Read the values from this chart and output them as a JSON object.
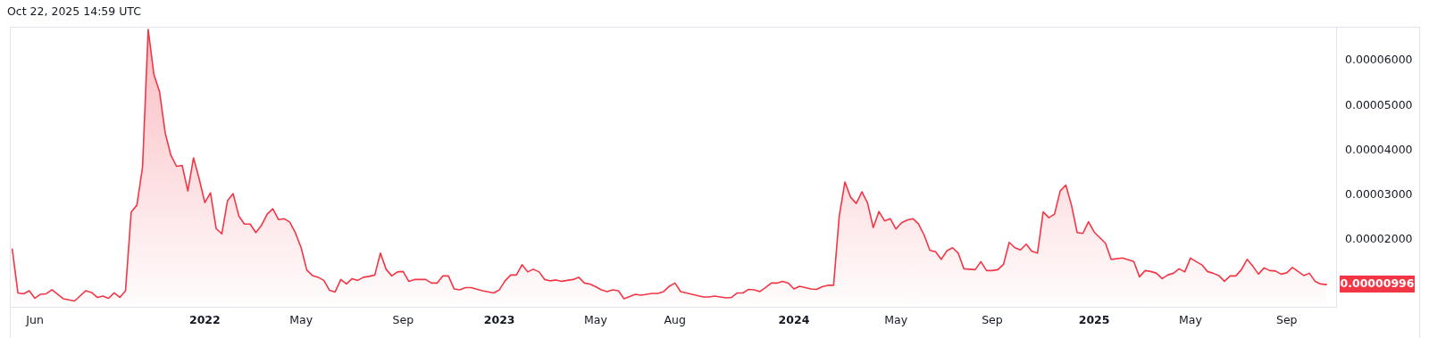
{
  "chart_data": {
    "type": "area",
    "annotations": [
      "Oct 22, 2025 14:59 UTC",
      "0.00000996"
    ],
    "xlim": [
      "2021-05-07",
      "2025-11-01"
    ],
    "xticks": [
      {
        "value": "2021-06-07",
        "label": "Jun"
      },
      {
        "value": "2022-01-03",
        "label": "2022"
      },
      {
        "value": "2022-05-02",
        "label": "May"
      },
      {
        "value": "2022-09-05",
        "label": "Sep"
      },
      {
        "value": "2023-01-02",
        "label": "2023"
      },
      {
        "value": "2023-05-01",
        "label": "May"
      },
      {
        "value": "2023-08-07",
        "label": "Aug"
      },
      {
        "value": "2024-01-01",
        "label": "2024"
      },
      {
        "value": "2024-05-06",
        "label": "May"
      },
      {
        "value": "2024-09-02",
        "label": "Sep"
      },
      {
        "value": "2025-01-06",
        "label": "2025"
      },
      {
        "value": "2025-05-05",
        "label": "May"
      },
      {
        "value": "2025-09-01",
        "label": "Sep"
      }
    ],
    "ylim": [
      5e-06,
      6.76e-05
    ],
    "yticks": [
      {
        "value": 2e-05,
        "label": "0.00002000"
      },
      {
        "value": 3e-05,
        "label": "0.00003000"
      },
      {
        "value": 4e-05,
        "label": "0.00004000"
      },
      {
        "value": 5e-05,
        "label": "0.00005000"
      },
      {
        "value": 6e-05,
        "label": "0.00006000"
      }
    ],
    "series": [
      {
        "color": "#f23645",
        "x": [
          "2021-05-10",
          "2021-05-17",
          "2021-05-24",
          "2021-05-31",
          "2021-06-07",
          "2021-06-14",
          "2021-06-21",
          "2021-06-28",
          "2021-07-12",
          "2021-07-26",
          "2021-08-09",
          "2021-08-16",
          "2021-08-23",
          "2021-08-30",
          "2021-09-06",
          "2021-09-13",
          "2021-09-20",
          "2021-09-27",
          "2021-10-04",
          "2021-10-11",
          "2021-10-18",
          "2021-10-25",
          "2021-11-01",
          "2021-11-08",
          "2021-11-15",
          "2021-11-22",
          "2021-11-29",
          "2021-12-06",
          "2021-12-13",
          "2021-12-20",
          "2021-12-27",
          "2022-01-03",
          "2022-01-10",
          "2022-01-17",
          "2022-01-24",
          "2022-01-31",
          "2022-02-07",
          "2022-02-14",
          "2022-02-21",
          "2022-02-28",
          "2022-03-07",
          "2022-03-14",
          "2022-03-21",
          "2022-03-28",
          "2022-04-04",
          "2022-04-11",
          "2022-04-18",
          "2022-04-25",
          "2022-05-02",
          "2022-05-09",
          "2022-05-16",
          "2022-05-23",
          "2022-05-30",
          "2022-06-06",
          "2022-06-13",
          "2022-06-20",
          "2022-06-27",
          "2022-07-04",
          "2022-07-11",
          "2022-07-18",
          "2022-07-25",
          "2022-08-01",
          "2022-08-08",
          "2022-08-15",
          "2022-08-22",
          "2022-08-29",
          "2022-09-05",
          "2022-09-12",
          "2022-09-19",
          "2022-10-03",
          "2022-10-10",
          "2022-10-17",
          "2022-10-24",
          "2022-10-31",
          "2022-11-07",
          "2022-11-14",
          "2022-11-21",
          "2022-11-28",
          "2022-12-12",
          "2022-12-26",
          "2023-01-02",
          "2023-01-09",
          "2023-01-16",
          "2023-01-23",
          "2023-01-30",
          "2023-02-06",
          "2023-02-13",
          "2023-02-20",
          "2023-02-27",
          "2023-03-06",
          "2023-03-13",
          "2023-03-20",
          "2023-04-03",
          "2023-04-10",
          "2023-04-17",
          "2023-04-24",
          "2023-05-01",
          "2023-05-08",
          "2023-05-15",
          "2023-05-22",
          "2023-05-29",
          "2023-06-05",
          "2023-06-19",
          "2023-06-26",
          "2023-07-10",
          "2023-07-17",
          "2023-07-24",
          "2023-07-31",
          "2023-08-07",
          "2023-08-14",
          "2023-08-28",
          "2023-09-11",
          "2023-09-18",
          "2023-09-25",
          "2023-10-09",
          "2023-10-16",
          "2023-10-23",
          "2023-10-30",
          "2023-11-06",
          "2023-11-13",
          "2023-11-20",
          "2023-11-27",
          "2023-12-04",
          "2023-12-11",
          "2023-12-18",
          "2023-12-25",
          "2024-01-01",
          "2024-01-08",
          "2024-01-15",
          "2024-01-22",
          "2024-01-29",
          "2024-02-05",
          "2024-02-12",
          "2024-02-19",
          "2024-02-26",
          "2024-03-04",
          "2024-03-11",
          "2024-03-18",
          "2024-03-25",
          "2024-04-01",
          "2024-04-08",
          "2024-04-15",
          "2024-04-22",
          "2024-04-29",
          "2024-05-06",
          "2024-05-13",
          "2024-05-20",
          "2024-05-27",
          "2024-06-03",
          "2024-06-10",
          "2024-06-17",
          "2024-06-24",
          "2024-07-01",
          "2024-07-08",
          "2024-07-15",
          "2024-07-22",
          "2024-07-29",
          "2024-08-12",
          "2024-08-19",
          "2024-08-26",
          "2024-09-02",
          "2024-09-09",
          "2024-09-16",
          "2024-09-23",
          "2024-09-30",
          "2024-10-07",
          "2024-10-14",
          "2024-10-21",
          "2024-10-28",
          "2024-11-04",
          "2024-11-11",
          "2024-11-18",
          "2024-11-25",
          "2024-12-02",
          "2024-12-09",
          "2024-12-16",
          "2024-12-23",
          "2024-12-30",
          "2025-01-06",
          "2025-01-20",
          "2025-01-27",
          "2025-02-10",
          "2025-02-17",
          "2025-02-24",
          "2025-03-03",
          "2025-03-10",
          "2025-03-17",
          "2025-03-24",
          "2025-03-31",
          "2025-04-07",
          "2025-04-14",
          "2025-04-21",
          "2025-04-28",
          "2025-05-05",
          "2025-05-12",
          "2025-05-19",
          "2025-05-26",
          "2025-06-02",
          "2025-06-09",
          "2025-06-16",
          "2025-06-23",
          "2025-06-30",
          "2025-07-07",
          "2025-07-14",
          "2025-07-21",
          "2025-07-28",
          "2025-08-04",
          "2025-08-11",
          "2025-08-18",
          "2025-08-25",
          "2025-09-01",
          "2025-09-08",
          "2025-09-15",
          "2025-09-22",
          "2025-09-29",
          "2025-10-06",
          "2025-10-13",
          "2025-10-20"
        ],
        "values": [
          1.79e-05,
          8.1e-06,
          7.9e-06,
          8.6e-06,
          6.9e-06,
          7.8e-06,
          7.9e-06,
          8.8e-06,
          6.8e-06,
          6.3e-06,
          8.6e-06,
          8.2e-06,
          7.1e-06,
          7.4e-06,
          6.9e-06,
          8.1e-06,
          7.1e-06,
          8.6e-06,
          2.62e-05,
          2.77e-05,
          3.62e-05,
          6.7e-05,
          5.7e-05,
          5.31e-05,
          4.39e-05,
          3.89e-05,
          3.64e-05,
          3.66e-05,
          3.09e-05,
          3.83e-05,
          3.36e-05,
          2.83e-05,
          3.05e-05,
          2.25e-05,
          2.13e-05,
          2.87e-05,
          3.03e-05,
          2.53e-05,
          2.35e-05,
          2.35e-05,
          2.16e-05,
          2.32e-05,
          2.57e-05,
          2.69e-05,
          2.45e-05,
          2.47e-05,
          2.39e-05,
          2.15e-05,
          1.82e-05,
          1.32e-05,
          1.2e-05,
          1.16e-05,
          1.09e-05,
          8.7e-06,
          8.3e-06,
          1.11e-05,
          1.01e-05,
          1.13e-05,
          1.09e-05,
          1.16e-05,
          1.18e-05,
          1.21e-05,
          1.7e-05,
          1.34e-05,
          1.19e-05,
          1.28e-05,
          1.29e-05,
          1.07e-05,
          1.11e-05,
          1.11e-05,
          1.03e-05,
          1.03e-05,
          1.19e-05,
          1.19e-05,
          9e-06,
          8.8e-06,
          9.3e-06,
          9.3e-06,
          8.6e-06,
          8.1e-06,
          8.8e-06,
          1.08e-05,
          1.21e-05,
          1.21e-05,
          1.44e-05,
          1.28e-05,
          1.34e-05,
          1.28e-05,
          1.11e-05,
          1.08e-05,
          1.1e-05,
          1.07e-05,
          1.11e-05,
          1.16e-05,
          1.03e-05,
          1.01e-05,
          9.5e-06,
          8.8e-06,
          8.4e-06,
          8.8e-06,
          8.6e-06,
          6.8e-06,
          7.8e-06,
          7.6e-06,
          8e-06,
          8e-06,
          8.4e-06,
          9.6e-06,
          1.03e-05,
          8.4e-06,
          7.8e-06,
          7.2e-06,
          7.2e-06,
          7.4e-06,
          7e-06,
          7.1e-06,
          8.1e-06,
          8.1e-06,
          8.9e-06,
          8.8e-06,
          8.4e-06,
          9.3e-06,
          1.03e-05,
          1.03e-05,
          1.07e-05,
          1.03e-05,
          9e-06,
          9.6e-06,
          9.3e-06,
          9e-06,
          8.9e-06,
          9.5e-06,
          9.8e-06,
          9.8e-06,
          2.53e-05,
          3.29e-05,
          2.95e-05,
          2.81e-05,
          3.07e-05,
          2.82e-05,
          2.27e-05,
          2.63e-05,
          2.42e-05,
          2.47e-05,
          2.24e-05,
          2.38e-05,
          2.44e-05,
          2.47e-05,
          2.35e-05,
          2.1e-05,
          1.76e-05,
          1.73e-05,
          1.56e-05,
          1.75e-05,
          1.82e-05,
          1.7e-05,
          1.35e-05,
          1.33e-05,
          1.51e-05,
          1.31e-05,
          1.31e-05,
          1.33e-05,
          1.45e-05,
          1.94e-05,
          1.82e-05,
          1.77e-05,
          1.9e-05,
          1.74e-05,
          1.7e-05,
          2.62e-05,
          2.49e-05,
          2.57e-05,
          3.09e-05,
          3.22e-05,
          2.77e-05,
          2.16e-05,
          2.14e-05,
          2.4e-05,
          2.17e-05,
          1.92e-05,
          1.56e-05,
          1.59e-05,
          1.55e-05,
          1.51e-05,
          1.17e-05,
          1.31e-05,
          1.29e-05,
          1.25e-05,
          1.13e-05,
          1.21e-05,
          1.25e-05,
          1.35e-05,
          1.28e-05,
          1.59e-05,
          1.51e-05,
          1.44e-05,
          1.29e-05,
          1.25e-05,
          1.2e-05,
          1.07e-05,
          1.19e-05,
          1.19e-05,
          1.33e-05,
          1.56e-05,
          1.41e-05,
          1.23e-05,
          1.37e-05,
          1.31e-05,
          1.3e-05,
          1.23e-05,
          1.26e-05,
          1.38e-05,
          1.29e-05,
          1.2e-05,
          1.25e-05,
          1.07e-05,
          1.01e-05,
          9.96e-06
        ]
      }
    ]
  }
}
